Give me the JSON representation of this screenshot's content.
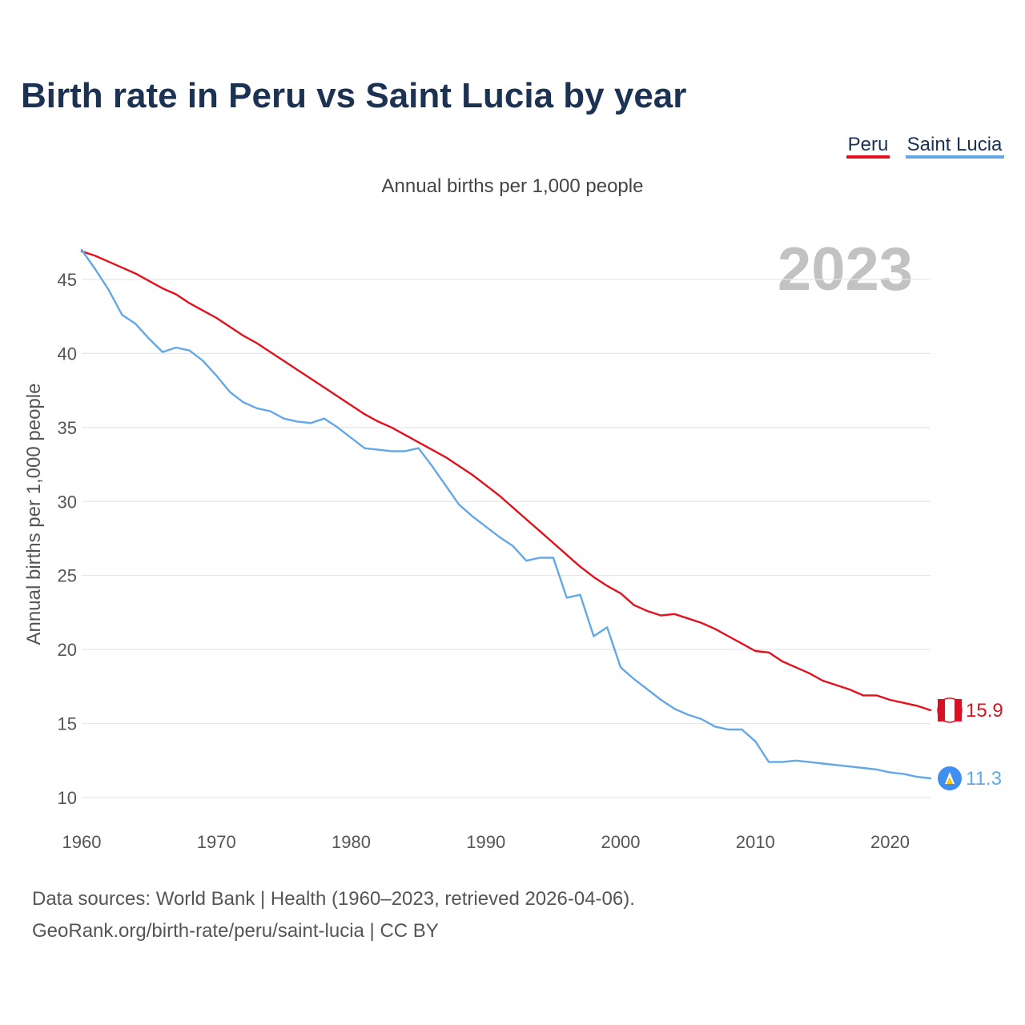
{
  "title": "Birth rate in Peru vs Saint Lucia by year",
  "legend": [
    {
      "label": "Peru",
      "color": "#e3111b"
    },
    {
      "label": "Saint Lucia",
      "color": "#62a8e8"
    }
  ],
  "watermark_year": "2023",
  "source_line1": "Data sources: World Bank | Health (1960–2023, retrieved 2026-04-06).",
  "source_line2": "GeoRank.org/birth-rate/peru/saint-lucia | CC BY",
  "end_labels": {
    "peru": "15.9",
    "saint_lucia": "11.3"
  },
  "chart_data": {
    "type": "line",
    "title": "Birth rate in Peru vs Saint Lucia by year",
    "subtitle": "Annual births per 1,000 people",
    "xlabel": "",
    "ylabel": "Annual births per 1,000 people",
    "xlim": [
      1960,
      2023
    ],
    "ylim": [
      10,
      47
    ],
    "xticks": [
      1960,
      1970,
      1980,
      1990,
      2000,
      2010,
      2020
    ],
    "yticks": [
      10,
      15,
      20,
      25,
      30,
      35,
      40,
      45
    ],
    "grid": true,
    "legend_position": "top-right",
    "x": [
      1960,
      1961,
      1962,
      1963,
      1964,
      1965,
      1966,
      1967,
      1968,
      1969,
      1970,
      1971,
      1972,
      1973,
      1974,
      1975,
      1976,
      1977,
      1978,
      1979,
      1980,
      1981,
      1982,
      1983,
      1984,
      1985,
      1986,
      1987,
      1988,
      1989,
      1990,
      1991,
      1992,
      1993,
      1994,
      1995,
      1996,
      1997,
      1998,
      1999,
      2000,
      2001,
      2002,
      2003,
      2004,
      2005,
      2006,
      2007,
      2008,
      2009,
      2010,
      2011,
      2012,
      2013,
      2014,
      2015,
      2016,
      2017,
      2018,
      2019,
      2020,
      2021,
      2022,
      2023
    ],
    "series": [
      {
        "name": "Peru",
        "color": "#e3111b",
        "values": [
          46.9,
          46.6,
          46.2,
          45.8,
          45.4,
          44.9,
          44.4,
          44.0,
          43.4,
          42.9,
          42.4,
          41.8,
          41.2,
          40.7,
          40.1,
          39.5,
          38.9,
          38.3,
          37.7,
          37.1,
          36.5,
          35.9,
          35.4,
          35.0,
          34.5,
          34.0,
          33.5,
          33.0,
          32.4,
          31.8,
          31.1,
          30.4,
          29.6,
          28.8,
          28.0,
          27.2,
          26.4,
          25.6,
          24.9,
          24.3,
          23.8,
          23.0,
          22.6,
          22.3,
          22.4,
          22.1,
          21.8,
          21.4,
          20.9,
          20.4,
          19.9,
          19.8,
          19.2,
          18.8,
          18.4,
          17.9,
          17.6,
          17.3,
          16.9,
          16.9,
          16.6,
          16.4,
          16.2,
          15.9
        ]
      },
      {
        "name": "Saint Lucia",
        "color": "#62a8e8",
        "values": [
          47.0,
          45.7,
          44.3,
          42.6,
          42.0,
          41.0,
          40.1,
          40.4,
          40.2,
          39.5,
          38.5,
          37.4,
          36.7,
          36.3,
          36.1,
          35.6,
          35.4,
          35.3,
          35.6,
          35.0,
          34.3,
          33.6,
          33.5,
          33.4,
          33.4,
          33.6,
          32.4,
          31.1,
          29.8,
          29.0,
          28.3,
          27.6,
          27.0,
          26.0,
          26.2,
          26.2,
          23.5,
          23.7,
          20.9,
          21.5,
          18.8,
          18.0,
          17.3,
          16.6,
          16.0,
          15.6,
          15.3,
          14.8,
          14.6,
          14.6,
          13.8,
          12.4,
          12.4,
          12.5,
          12.4,
          12.3,
          12.2,
          12.1,
          12.0,
          11.9,
          11.7,
          11.6,
          11.4,
          11.3
        ]
      }
    ]
  }
}
